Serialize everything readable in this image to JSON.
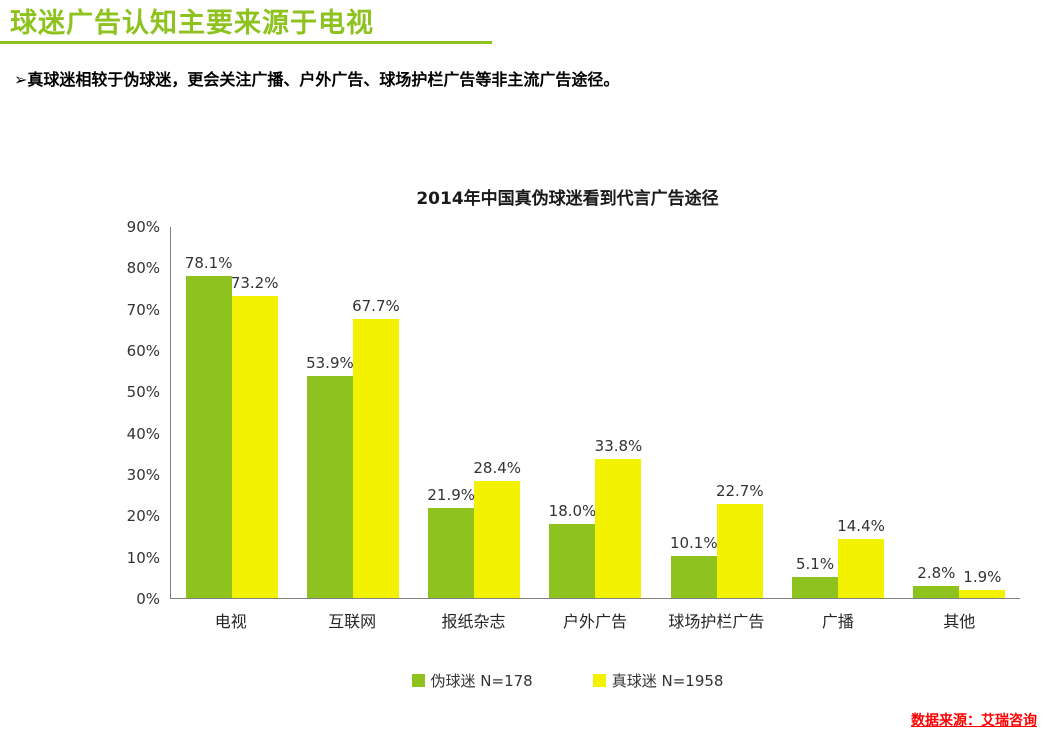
{
  "page": {
    "title": "球迷广告认知主要来源于电视",
    "bullet": "➢真球迷相较于伪球迷，更会关注广播、户外广告、球场护栏广告等非主流广告途径。",
    "source": "数据来源：艾瑞咨询"
  },
  "colors": {
    "title_green": "#8dc21f",
    "bar_green": "#8dc21f",
    "bar_yellow": "#f2f200",
    "source_red": "#ff0000"
  },
  "chart_data": {
    "type": "bar",
    "title": "2014年中国真伪球迷看到代言广告途径",
    "categories": [
      "电视",
      "互联网",
      "报纸杂志",
      "户外广告",
      "球场护栏广告",
      "广播",
      "其他"
    ],
    "series": [
      {
        "name": "伪球迷 N=178",
        "color": "#8dc21f",
        "values": [
          78.1,
          53.9,
          21.9,
          18.0,
          10.1,
          5.1,
          2.8
        ]
      },
      {
        "name": "真球迷 N=1958",
        "color": "#f2f200",
        "values": [
          73.2,
          67.7,
          28.4,
          33.8,
          22.7,
          14.4,
          1.9
        ]
      }
    ],
    "xlabel": "",
    "ylabel": "",
    "ylim": [
      0,
      90
    ],
    "ytick_step": 10,
    "value_label_suffix": "%",
    "grid": false,
    "legend_position": "bottom"
  }
}
